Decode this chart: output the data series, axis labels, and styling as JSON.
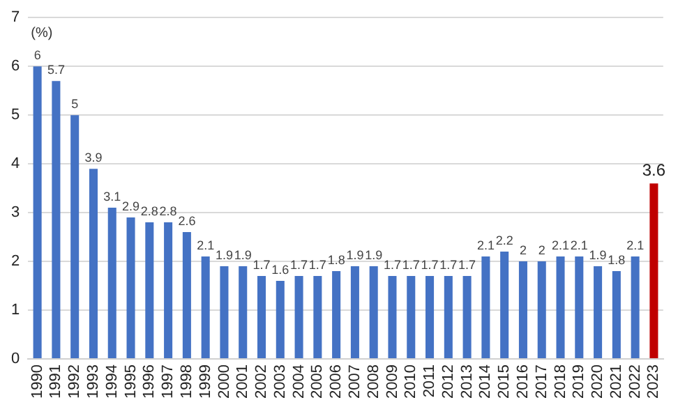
{
  "chart_data": {
    "type": "bar",
    "ylabel": "(%)",
    "categories": [
      "1990",
      "1991",
      "1992",
      "1993",
      "1994",
      "1995",
      "1996",
      "1997",
      "1998",
      "1999",
      "2000",
      "2001",
      "2002",
      "2003",
      "2004",
      "2005",
      "2006",
      "2007",
      "2008",
      "2009",
      "2010",
      "2011",
      "2012",
      "2013",
      "2014",
      "2015",
      "2016",
      "2017",
      "2018",
      "2019",
      "2020",
      "2021",
      "2022",
      "2023"
    ],
    "values": [
      6,
      5.7,
      5,
      3.9,
      3.1,
      2.9,
      2.8,
      2.8,
      2.6,
      2.1,
      1.9,
      1.9,
      1.7,
      1.6,
      1.7,
      1.7,
      1.8,
      1.9,
      1.9,
      1.7,
      1.7,
      1.7,
      1.7,
      1.7,
      2.1,
      2.2,
      2,
      2,
      2.1,
      2.1,
      1.9,
      1.8,
      2.1,
      3.6
    ],
    "colors": [
      "#4472c4",
      "#4472c4",
      "#4472c4",
      "#4472c4",
      "#4472c4",
      "#4472c4",
      "#4472c4",
      "#4472c4",
      "#4472c4",
      "#4472c4",
      "#4472c4",
      "#4472c4",
      "#4472c4",
      "#4472c4",
      "#4472c4",
      "#4472c4",
      "#4472c4",
      "#4472c4",
      "#4472c4",
      "#4472c4",
      "#4472c4",
      "#4472c4",
      "#4472c4",
      "#4472c4",
      "#4472c4",
      "#4472c4",
      "#4472c4",
      "#4472c4",
      "#4472c4",
      "#4472c4",
      "#4472c4",
      "#4472c4",
      "#4472c4",
      "#c00000"
    ],
    "ylim": [
      0,
      7
    ],
    "yticks": [
      0,
      1,
      2,
      3,
      4,
      5,
      6,
      7
    ],
    "grid": "y",
    "legend": false,
    "data_labels": true
  }
}
